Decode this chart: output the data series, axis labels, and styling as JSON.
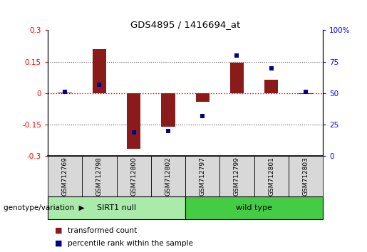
{
  "title": "GDS4895 / 1416694_at",
  "samples": [
    "GSM712769",
    "GSM712798",
    "GSM712800",
    "GSM712802",
    "GSM712797",
    "GSM712799",
    "GSM712801",
    "GSM712803"
  ],
  "bar_values": [
    0.005,
    0.21,
    -0.265,
    -0.16,
    -0.04,
    0.145,
    0.065,
    -0.005
  ],
  "dot_values": [
    51,
    57,
    19,
    20,
    32,
    80,
    70,
    51
  ],
  "groups": [
    {
      "label": "SIRT1 null",
      "start": 0,
      "end": 4,
      "color": "#AAEAAA"
    },
    {
      "label": "wild type",
      "start": 4,
      "end": 8,
      "color": "#44CC44"
    }
  ],
  "group_label": "genotype/variation",
  "ylim_left": [
    -0.3,
    0.3
  ],
  "ylim_right": [
    0,
    100
  ],
  "yticks_left": [
    -0.3,
    -0.15,
    0.0,
    0.15,
    0.3
  ],
  "yticks_right": [
    0,
    25,
    50,
    75,
    100
  ],
  "bar_color": "#8B1A1A",
  "dot_color": "#00008B",
  "hline_color": "#CC0000",
  "dotted_color": "#555555",
  "legend_items": [
    "transformed count",
    "percentile rank within the sample"
  ],
  "bar_width": 0.4,
  "bg_color": "#FFFFFF"
}
